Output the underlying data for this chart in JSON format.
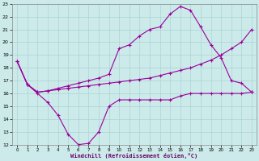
{
  "xlabel": "Windchill (Refroidissement éolien,°C)",
  "background_color": "#cceaea",
  "grid_color": "#aad4d4",
  "line_color": "#990099",
  "xlim": [
    -0.5,
    23.5
  ],
  "ylim": [
    12,
    23
  ],
  "xticks": [
    0,
    1,
    2,
    3,
    4,
    5,
    6,
    7,
    8,
    9,
    10,
    11,
    12,
    13,
    14,
    15,
    16,
    17,
    18,
    19,
    20,
    21,
    22,
    23
  ],
  "yticks": [
    12,
    13,
    14,
    15,
    16,
    17,
    18,
    19,
    20,
    21,
    22,
    23
  ],
  "line1_x": [
    0,
    1,
    2,
    3,
    4,
    5,
    6,
    7,
    8,
    9,
    10,
    11,
    12,
    13,
    14,
    15,
    16,
    17,
    18,
    19,
    20,
    21,
    22,
    23
  ],
  "line1_y": [
    18.5,
    16.7,
    16.0,
    15.3,
    14.3,
    12.8,
    12.0,
    12.1,
    13.0,
    15.0,
    15.5,
    15.5,
    15.5,
    15.5,
    15.5,
    15.5,
    15.8,
    16.0,
    16.0,
    16.0,
    16.0,
    16.0,
    16.0,
    16.1
  ],
  "line2_x": [
    0,
    1,
    2,
    3,
    4,
    5,
    6,
    7,
    8,
    9,
    10,
    11,
    12,
    13,
    14,
    15,
    16,
    17,
    18,
    19,
    20,
    21,
    22,
    23
  ],
  "line2_y": [
    18.5,
    16.7,
    16.1,
    16.2,
    16.3,
    16.4,
    16.5,
    16.6,
    16.7,
    16.8,
    16.9,
    17.0,
    17.1,
    17.2,
    17.4,
    17.6,
    17.8,
    18.0,
    18.3,
    18.6,
    19.0,
    19.5,
    20.0,
    21.0
  ],
  "line3_x": [
    0,
    1,
    2,
    3,
    4,
    5,
    6,
    7,
    8,
    9,
    10,
    11,
    12,
    13,
    14,
    15,
    16,
    17,
    18,
    19,
    20,
    21,
    22,
    23
  ],
  "line3_y": [
    18.5,
    16.7,
    16.1,
    16.2,
    16.4,
    16.6,
    16.8,
    17.0,
    17.2,
    17.5,
    19.5,
    19.8,
    20.5,
    21.0,
    21.2,
    22.2,
    22.8,
    22.5,
    21.2,
    19.8,
    18.8,
    17.0,
    16.8,
    16.1
  ],
  "marker": "+"
}
